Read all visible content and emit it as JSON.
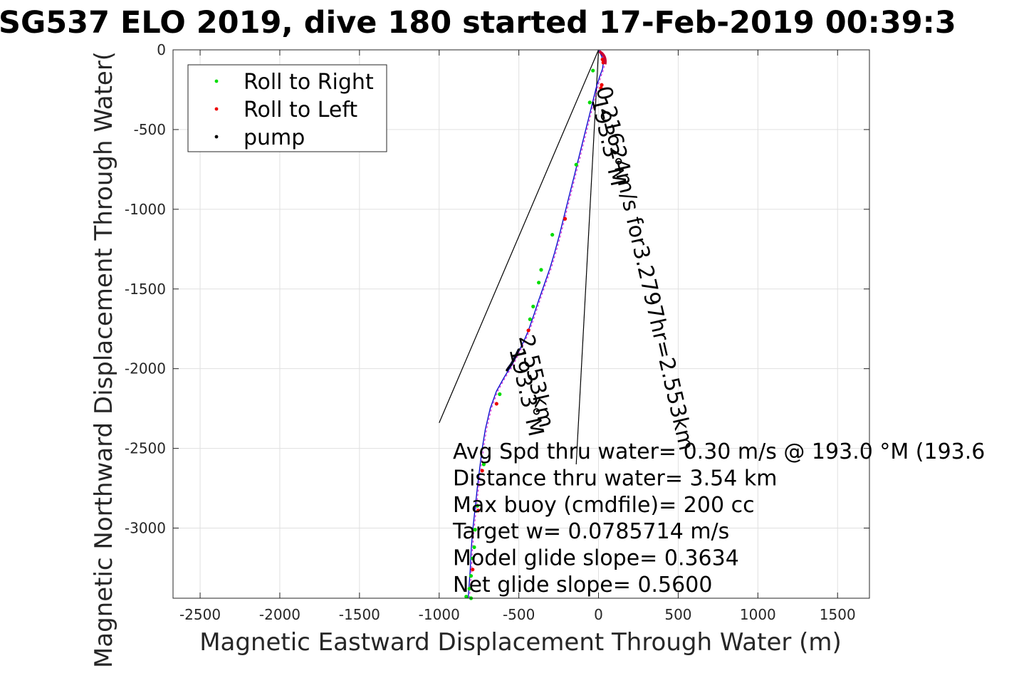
{
  "chart_data": {
    "type": "scatter",
    "title": "SG537 ELO 2019, dive 180 started 17-Feb-2019 00:39:3",
    "xlabel": "Magnetic Eastward Displacement Through Water (m)",
    "ylabel": "Magnetic Northward Displacement Through Water(",
    "xlim": [
      -2670,
      1700
    ],
    "ylim": [
      -3440,
      0
    ],
    "xticks": [
      -2500,
      -2000,
      -1500,
      -1000,
      -500,
      0,
      500,
      1000,
      1500
    ],
    "yticks": [
      0,
      -500,
      -1000,
      -1500,
      -2000,
      -2500,
      -3000
    ],
    "grid": true,
    "legend_position": "top-left",
    "legend": [
      {
        "label": "Roll to Right",
        "color": "#00dd00"
      },
      {
        "label": "Roll to Left",
        "color": "#ee0000"
      },
      {
        "label": "pump",
        "color": "#000000"
      }
    ],
    "track": [
      [
        0,
        0
      ],
      [
        20,
        -40
      ],
      [
        30,
        -80
      ],
      [
        25,
        -120
      ],
      [
        10,
        -160
      ],
      [
        -10,
        -220
      ],
      [
        -30,
        -300
      ],
      [
        -50,
        -380
      ],
      [
        -70,
        -460
      ],
      [
        -95,
        -560
      ],
      [
        -125,
        -680
      ],
      [
        -155,
        -800
      ],
      [
        -185,
        -920
      ],
      [
        -215,
        -1040
      ],
      [
        -245,
        -1160
      ],
      [
        -275,
        -1270
      ],
      [
        -305,
        -1370
      ],
      [
        -340,
        -1470
      ],
      [
        -375,
        -1570
      ],
      [
        -405,
        -1660
      ],
      [
        -440,
        -1760
      ],
      [
        -470,
        -1830
      ],
      [
        -500,
        -1890
      ],
      [
        -540,
        -1970
      ],
      [
        -590,
        -2050
      ],
      [
        -640,
        -2140
      ],
      [
        -680,
        -2250
      ],
      [
        -710,
        -2380
      ],
      [
        -730,
        -2500
      ],
      [
        -745,
        -2620
      ],
      [
        -760,
        -2740
      ],
      [
        -775,
        -2880
      ],
      [
        -790,
        -3020
      ],
      [
        -800,
        -3150
      ],
      [
        -805,
        -3260
      ],
      [
        -812,
        -3360
      ],
      [
        -818,
        -3440
      ]
    ],
    "roll_right": [
      [
        -35,
        -130
      ],
      [
        -55,
        -330
      ],
      [
        -140,
        -720
      ],
      [
        -290,
        -1160
      ],
      [
        -360,
        -1380
      ],
      [
        -375,
        -1460
      ],
      [
        -410,
        -1610
      ],
      [
        -430,
        -1690
      ],
      [
        -620,
        -2160
      ],
      [
        -720,
        -2600
      ],
      [
        -760,
        -2860
      ],
      [
        -775,
        -3010
      ],
      [
        -780,
        -3120
      ],
      [
        -790,
        -3190
      ],
      [
        -800,
        -3300
      ],
      [
        -810,
        -3380
      ],
      [
        -830,
        -3430
      ],
      [
        -800,
        -3440
      ]
    ],
    "roll_left": [
      [
        25,
        -60
      ],
      [
        30,
        -80
      ],
      [
        20,
        -220
      ],
      [
        15,
        -240
      ],
      [
        -210,
        -1060
      ],
      [
        -440,
        -1760
      ],
      [
        -640,
        -2220
      ],
      [
        -730,
        -2640
      ],
      [
        -755,
        -2890
      ],
      [
        -790,
        -3260
      ]
    ],
    "pump": [
      [
        -500,
        -1880
      ],
      [
        -510,
        -1900
      ],
      [
        -520,
        -1920
      ],
      [
        -535,
        -1950
      ],
      [
        -550,
        -1975
      ],
      [
        -565,
        -1995
      ],
      [
        -575,
        -2010
      ]
    ],
    "cone_lines": [
      [
        [
          0,
          0
        ],
        [
          -1000,
          -2340
        ]
      ],
      [
        [
          0,
          0
        ],
        [
          -140,
          -2600
        ]
      ]
    ],
    "rotated_labels": [
      {
        "text": "0.21624m/s for3.2797hr=2.553km",
        "x": -15,
        "y": -240,
        "angle": 77
      },
      {
        "text": "193.3°M",
        "x": -45,
        "y": -310,
        "angle": 77
      },
      {
        "text": "193.3°M",
        "x": -560,
        "y": -1880,
        "angle": 77
      },
      {
        "text": "2.553km",
        "x": -500,
        "y": -1800,
        "angle": 77
      }
    ],
    "annotations": [
      "Avg Spd thru water=  0.30 m/s @ 193.0 °M (193.6",
      "Distance thru water=  3.54 km",
      "Max buoy (cmdfile)= 200 cc",
      "Target w= 0.0785714 m/s",
      "Model glide slope= 0.3634",
      "Net glide slope= 0.5600"
    ],
    "colors": {
      "track": "#0000cc",
      "magenta_track": "#cc00cc",
      "pump_track": "#000033",
      "grid": "#e0e0e0",
      "axes": "#262626"
    }
  }
}
